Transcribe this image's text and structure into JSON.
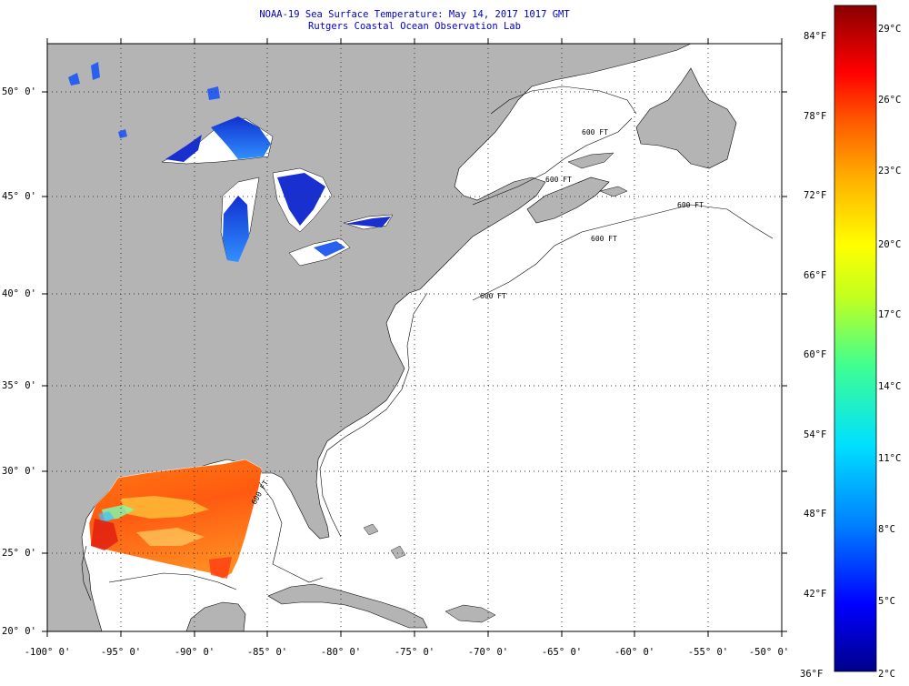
{
  "header": {
    "line1": "NOAA-19 Sea Surface Temperature:  May 14, 2017 1017 GMT",
    "line2": "Rutgers Coastal Ocean Observation Lab"
  },
  "map": {
    "lat_labels": [
      "50° 0'",
      "45° 0'",
      "40° 0'",
      "35° 0'",
      "30° 0'",
      "25° 0'",
      "20° 0'"
    ],
    "lon_labels": [
      "-100° 0'",
      "-95° 0'",
      "-90° 0'",
      "-85° 0'",
      "-80° 0'",
      "-75° 0'",
      "-70° 0'",
      "-65° 0'",
      "-60° 0'",
      "-55° 0'",
      "-50° 0'"
    ],
    "depth_contour_labels": [
      "600 FT",
      "600 FT",
      "600 FT",
      "600 FT",
      "600 FT",
      "600 FT"
    ],
    "land_color": "#b4b4b4",
    "no_data_color": "#ffffff"
  },
  "colorbar": {
    "f_labels": [
      "84°F",
      "78°F",
      "72°F",
      "66°F",
      "60°F",
      "54°F",
      "48°F",
      "42°F",
      "36°F"
    ],
    "c_labels": [
      "29°C",
      "26°C",
      "23°C",
      "20°C",
      "17°C",
      "14°C",
      "11°C",
      "8°C",
      "5°C",
      "2°C"
    ],
    "gradient_colors": [
      "#00008a",
      "#0000ff",
      "#0080ff",
      "#00e0ff",
      "#40ff90",
      "#c0ff20",
      "#ffff00",
      "#ffb000",
      "#ff6000",
      "#ff0000",
      "#8a0000"
    ]
  }
}
